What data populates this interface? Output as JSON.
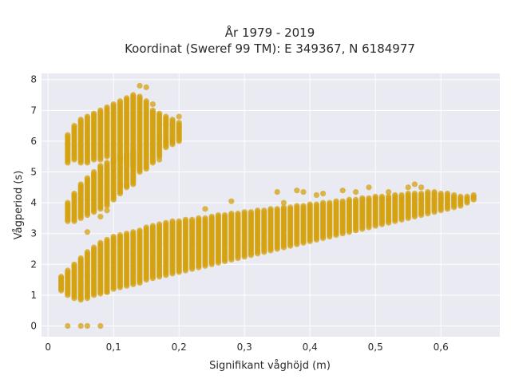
{
  "chart_data": {
    "type": "scatter",
    "title": "År 1979 - 2019",
    "subtitle": "Koordinat (Sweref 99 TM): E 349367, N 6184977",
    "xlabel": "Signifikant våghöjd (m)",
    "ylabel": "Vågperiod (s)",
    "xlim": [
      -0.01,
      0.69
    ],
    "ylim": [
      -0.35,
      8.2
    ],
    "x_ticks": [
      0,
      0.1,
      0.2,
      0.3,
      0.4,
      0.5,
      0.6
    ],
    "x_tick_labels": [
      "0",
      "0,1",
      "0,2",
      "0,3",
      "0,4",
      "0,5",
      "0,6"
    ],
    "y_ticks": [
      0,
      1,
      2,
      3,
      4,
      5,
      6,
      7,
      8
    ],
    "y_tick_labels": [
      "0",
      "1",
      "2",
      "3",
      "4",
      "5",
      "6",
      "7",
      "8"
    ],
    "grid": true,
    "background": "#e9eaf2",
    "grid_color": "#ffffff",
    "marker_color": "#d4a20f",
    "bands": [
      {
        "x_start": 0.02,
        "x_end": 0.65,
        "x_step": 0.01,
        "y_low": [
          1.2,
          1.0,
          0.9,
          0.85,
          0.9,
          1.0,
          1.05,
          1.1,
          1.2,
          1.25,
          1.3,
          1.35,
          1.4,
          1.5,
          1.55,
          1.6,
          1.65,
          1.7,
          1.75,
          1.8,
          1.85,
          1.9,
          1.95,
          2.0,
          2.05,
          2.1,
          2.15,
          2.2,
          2.25,
          2.3,
          2.35,
          2.4,
          2.45,
          2.5,
          2.55,
          2.6,
          2.65,
          2.7,
          2.75,
          2.8,
          2.85,
          2.9,
          2.95,
          3.0,
          3.05,
          3.1,
          3.15,
          3.2,
          3.25,
          3.3,
          3.35,
          3.4,
          3.45,
          3.5,
          3.55,
          3.6,
          3.65,
          3.7,
          3.75,
          3.8,
          3.85,
          3.9,
          4.0,
          4.1
        ],
        "y_high": [
          1.6,
          1.8,
          2.0,
          2.2,
          2.4,
          2.55,
          2.7,
          2.8,
          2.9,
          2.95,
          3.0,
          3.05,
          3.1,
          3.2,
          3.25,
          3.3,
          3.35,
          3.4,
          3.42,
          3.45,
          3.48,
          3.5,
          3.52,
          3.55,
          3.6,
          3.62,
          3.65,
          3.68,
          3.7,
          3.72,
          3.75,
          3.78,
          3.8,
          3.82,
          3.85,
          3.88,
          3.9,
          3.92,
          3.95,
          3.98,
          4.0,
          4.02,
          4.05,
          4.08,
          4.1,
          4.12,
          4.15,
          4.18,
          4.2,
          4.2,
          4.22,
          4.25,
          4.28,
          4.3,
          4.3,
          4.32,
          4.35,
          4.35,
          4.3,
          4.3,
          4.25,
          4.2,
          4.2,
          4.25
        ]
      },
      {
        "x_start": 0.03,
        "x_end": 0.13,
        "x_step": 0.01,
        "y_low": [
          3.4,
          3.4,
          3.5,
          3.6,
          3.7,
          3.8,
          3.9,
          4.1,
          4.3,
          4.5,
          4.6
        ],
        "y_high": [
          4.0,
          4.3,
          4.6,
          4.8,
          5.0,
          5.2,
          5.3,
          5.4,
          5.5,
          5.6,
          5.7
        ]
      },
      {
        "x_start": 0.03,
        "x_end": 0.2,
        "x_step": 0.01,
        "y_low": [
          5.3,
          5.4,
          5.3,
          5.3,
          5.4,
          5.4,
          5.5,
          5.3,
          5.4,
          5.3,
          5.2,
          5.0,
          5.1,
          5.3,
          5.5,
          5.8,
          5.9,
          6.0
        ],
        "y_high": [
          6.2,
          6.5,
          6.7,
          6.8,
          6.9,
          7.0,
          7.1,
          7.2,
          7.3,
          7.4,
          7.5,
          7.4,
          7.3,
          7.0,
          6.9,
          6.8,
          6.7,
          6.6
        ]
      }
    ],
    "outliers": [
      {
        "x": 0.03,
        "y": 0
      },
      {
        "x": 0.05,
        "y": 0
      },
      {
        "x": 0.06,
        "y": 0
      },
      {
        "x": 0.08,
        "y": 0
      },
      {
        "x": 0.06,
        "y": 1.65
      },
      {
        "x": 0.06,
        "y": 3.05
      },
      {
        "x": 0.08,
        "y": 3.55
      },
      {
        "x": 0.09,
        "y": 3.75
      },
      {
        "x": 0.14,
        "y": 7.8
      },
      {
        "x": 0.15,
        "y": 7.75
      },
      {
        "x": 0.14,
        "y": 7.45
      },
      {
        "x": 0.16,
        "y": 7.2
      },
      {
        "x": 0.17,
        "y": 6.1
      },
      {
        "x": 0.18,
        "y": 6.55
      },
      {
        "x": 0.19,
        "y": 6.05
      },
      {
        "x": 0.17,
        "y": 5.4
      },
      {
        "x": 0.2,
        "y": 6.8
      },
      {
        "x": 0.2,
        "y": 6.45
      },
      {
        "x": 0.18,
        "y": 6.0
      },
      {
        "x": 0.11,
        "y": 4.6
      },
      {
        "x": 0.12,
        "y": 4.55
      },
      {
        "x": 0.28,
        "y": 4.05
      },
      {
        "x": 0.24,
        "y": 3.8
      },
      {
        "x": 0.35,
        "y": 4.35
      },
      {
        "x": 0.38,
        "y": 4.4
      },
      {
        "x": 0.39,
        "y": 4.35
      },
      {
        "x": 0.41,
        "y": 4.25
      },
      {
        "x": 0.42,
        "y": 4.3
      },
      {
        "x": 0.45,
        "y": 4.4
      },
      {
        "x": 0.47,
        "y": 4.35
      },
      {
        "x": 0.49,
        "y": 4.5
      },
      {
        "x": 0.52,
        "y": 4.35
      },
      {
        "x": 0.55,
        "y": 4.5
      },
      {
        "x": 0.56,
        "y": 4.6
      },
      {
        "x": 0.57,
        "y": 4.5
      },
      {
        "x": 0.36,
        "y": 4.0
      },
      {
        "x": 0.02,
        "y": 1.15
      },
      {
        "x": 0.09,
        "y": 1.1
      }
    ]
  }
}
